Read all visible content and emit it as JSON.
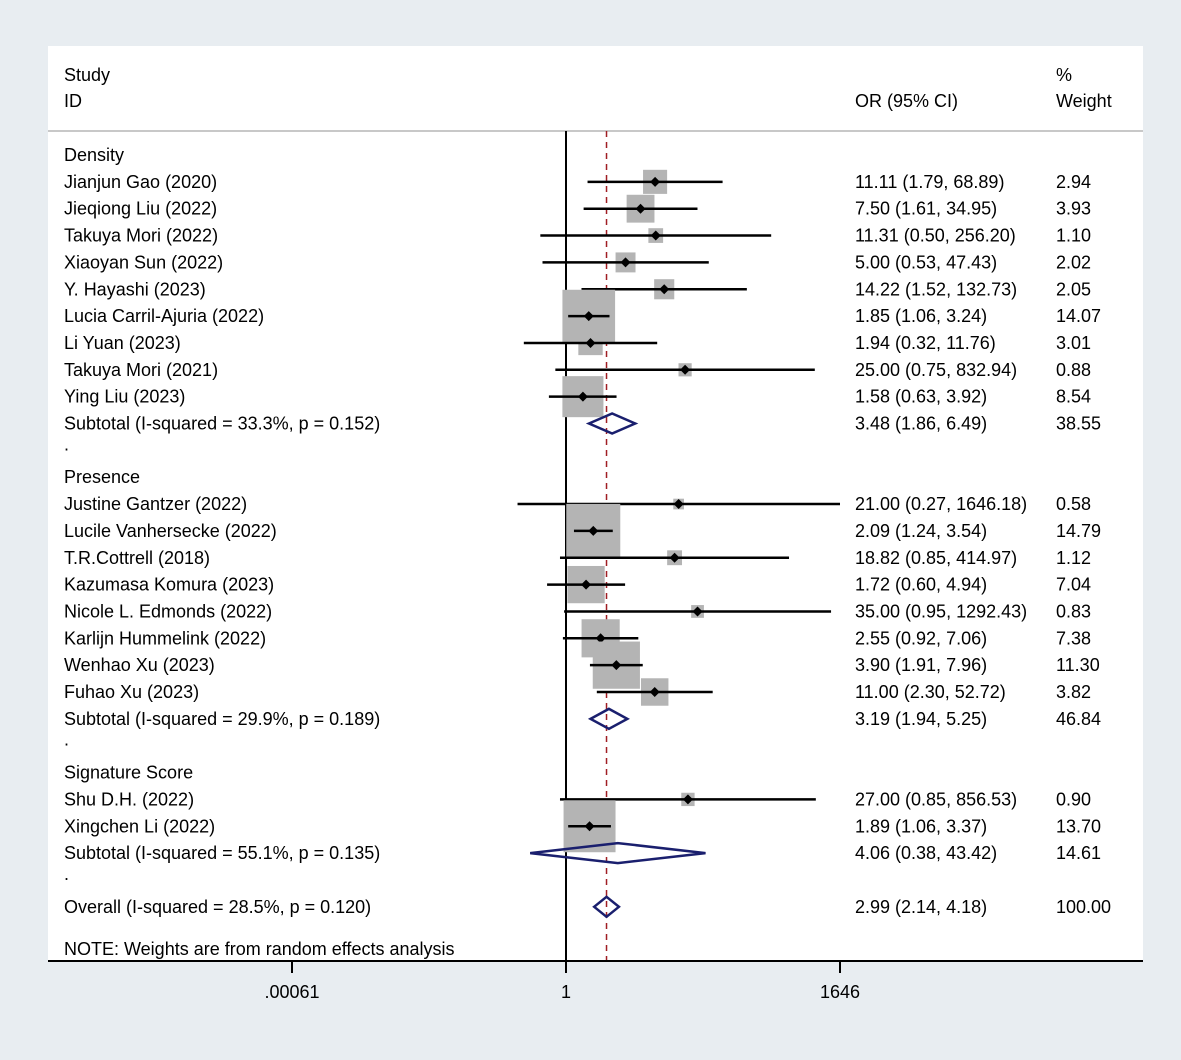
{
  "chart_data": {
    "type": "forest",
    "header": {
      "study_line1": "Study",
      "study_line2": "ID",
      "or_label": "OR (95% CI)",
      "weight_line1": "%",
      "weight_line2": "Weight"
    },
    "x_axis": {
      "scale": "log",
      "ticks": [
        {
          "value": 0.00061,
          "label": ".00061"
        },
        {
          "value": 1,
          "label": "1"
        },
        {
          "value": 1646,
          "label": "1646"
        }
      ],
      "null_line": 1,
      "overall_line": 2.99
    },
    "groups": [
      {
        "name": "Density",
        "studies": [
          {
            "id": "Jianjun Gao (2020)",
            "or": 11.11,
            "lo": 1.79,
            "hi": 68.89,
            "ci_text": "11.11 (1.79, 68.89)",
            "weight": 2.94,
            "weight_text": "2.94"
          },
          {
            "id": "Jieqiong Liu (2022)",
            "or": 7.5,
            "lo": 1.61,
            "hi": 34.95,
            "ci_text": "7.50 (1.61, 34.95)",
            "weight": 3.93,
            "weight_text": "3.93"
          },
          {
            "id": "Takuya Mori  (2022)",
            "or": 11.31,
            "lo": 0.5,
            "hi": 256.2,
            "ci_text": "11.31 (0.50, 256.20)",
            "weight": 1.1,
            "weight_text": "1.10"
          },
          {
            "id": "Xiaoyan Sun (2022)",
            "or": 5.0,
            "lo": 0.53,
            "hi": 47.43,
            "ci_text": "5.00 (0.53, 47.43)",
            "weight": 2.02,
            "weight_text": "2.02"
          },
          {
            "id": "Y. Hayashi (2023)",
            "or": 14.22,
            "lo": 1.52,
            "hi": 132.73,
            "ci_text": "14.22 (1.52, 132.73)",
            "weight": 2.05,
            "weight_text": "2.05"
          },
          {
            "id": "Lucia Carril-Ajuria (2022)",
            "or": 1.85,
            "lo": 1.06,
            "hi": 3.24,
            "ci_text": "1.85 (1.06, 3.24)",
            "weight": 14.07,
            "weight_text": "14.07"
          },
          {
            "id": "Li Yuan  (2023)",
            "or": 1.94,
            "lo": 0.32,
            "hi": 11.76,
            "ci_text": "1.94 (0.32, 11.76)",
            "weight": 3.01,
            "weight_text": "3.01"
          },
          {
            "id": "Takuya Mori (2021)",
            "or": 25.0,
            "lo": 0.75,
            "hi": 832.94,
            "ci_text": "25.00 (0.75, 832.94)",
            "weight": 0.88,
            "weight_text": "0.88"
          },
          {
            "id": "Ying Liu (2023)",
            "or": 1.58,
            "lo": 0.63,
            "hi": 3.92,
            "ci_text": "1.58 (0.63, 3.92)",
            "weight": 8.54,
            "weight_text": "8.54"
          }
        ],
        "subtotal": {
          "label": "Subtotal  (I-squared = 33.3%, p = 0.152)",
          "or": 3.48,
          "lo": 1.86,
          "hi": 6.49,
          "ci_text": "3.48 (1.86, 6.49)",
          "weight_text": "38.55"
        }
      },
      {
        "name": "Presence",
        "studies": [
          {
            "id": "Justine Gantzer (2022)",
            "or": 21.0,
            "lo": 0.27,
            "hi": 1646.18,
            "ci_text": "21.00 (0.27, 1646.18)",
            "weight": 0.58,
            "weight_text": "0.58"
          },
          {
            "id": "Lucile Vanhersecke (2022)",
            "or": 2.09,
            "lo": 1.24,
            "hi": 3.54,
            "ci_text": "2.09 (1.24, 3.54)",
            "weight": 14.79,
            "weight_text": "14.79"
          },
          {
            "id": "T.R.Cottrell (2018)",
            "or": 18.82,
            "lo": 0.85,
            "hi": 414.97,
            "ci_text": "18.82 (0.85, 414.97)",
            "weight": 1.12,
            "weight_text": "1.12"
          },
          {
            "id": "Kazumasa Komura (2023)",
            "or": 1.72,
            "lo": 0.6,
            "hi": 4.94,
            "ci_text": "1.72 (0.60, 4.94)",
            "weight": 7.04,
            "weight_text": "7.04"
          },
          {
            "id": "Nicole L. Edmonds (2022)",
            "or": 35.0,
            "lo": 0.95,
            "hi": 1292.43,
            "ci_text": "35.00 (0.95, 1292.43)",
            "weight": 0.83,
            "weight_text": "0.83"
          },
          {
            "id": "Karlijn Hummelink (2022)",
            "or": 2.55,
            "lo": 0.92,
            "hi": 7.06,
            "ci_text": "2.55 (0.92, 7.06)",
            "weight": 7.38,
            "weight_text": "7.38"
          },
          {
            "id": "Wenhao Xu (2023)",
            "or": 3.9,
            "lo": 1.91,
            "hi": 7.96,
            "ci_text": "3.90 (1.91, 7.96)",
            "weight": 11.3,
            "weight_text": "11.30"
          },
          {
            "id": "Fuhao Xu (2023)",
            "or": 11.0,
            "lo": 2.3,
            "hi": 52.72,
            "ci_text": "11.00 (2.30, 52.72)",
            "weight": 3.82,
            "weight_text": "3.82"
          }
        ],
        "subtotal": {
          "label": "Subtotal  (I-squared = 29.9%, p = 0.189)",
          "or": 3.19,
          "lo": 1.94,
          "hi": 5.25,
          "ci_text": "3.19 (1.94, 5.25)",
          "weight_text": "46.84"
        }
      },
      {
        "name": "Signature Score",
        "studies": [
          {
            "id": "Shu D.H. (2022)",
            "or": 27.0,
            "lo": 0.85,
            "hi": 856.53,
            "ci_text": "27.00 (0.85, 856.53)",
            "weight": 0.9,
            "weight_text": "0.90"
          },
          {
            "id": "Xingchen Li  (2022)",
            "or": 1.89,
            "lo": 1.06,
            "hi": 3.37,
            "ci_text": "1.89 (1.06, 3.37)",
            "weight": 13.7,
            "weight_text": "13.70"
          }
        ],
        "subtotal": {
          "label": "Subtotal  (I-squared = 55.1%, p = 0.135)",
          "or": 4.06,
          "lo": 0.38,
          "hi": 43.42,
          "ci_text": "4.06 (0.38, 43.42)",
          "weight_text": "14.61"
        }
      }
    ],
    "overall": {
      "label": "Overall  (I-squared = 28.5%, p = 0.120)",
      "or": 2.99,
      "lo": 2.14,
      "hi": 4.18,
      "ci_text": "2.99 (2.14, 4.18)",
      "weight_text": "100.00"
    },
    "separator": ".",
    "note": "NOTE: Weights are from random effects analysis",
    "colors": {
      "background": "#e8edf1",
      "panel": "#ffffff",
      "box": "#b4b4b4",
      "diamond": "#1a1f6e",
      "overall_line": "#a01e23",
      "text": "#000000"
    }
  }
}
